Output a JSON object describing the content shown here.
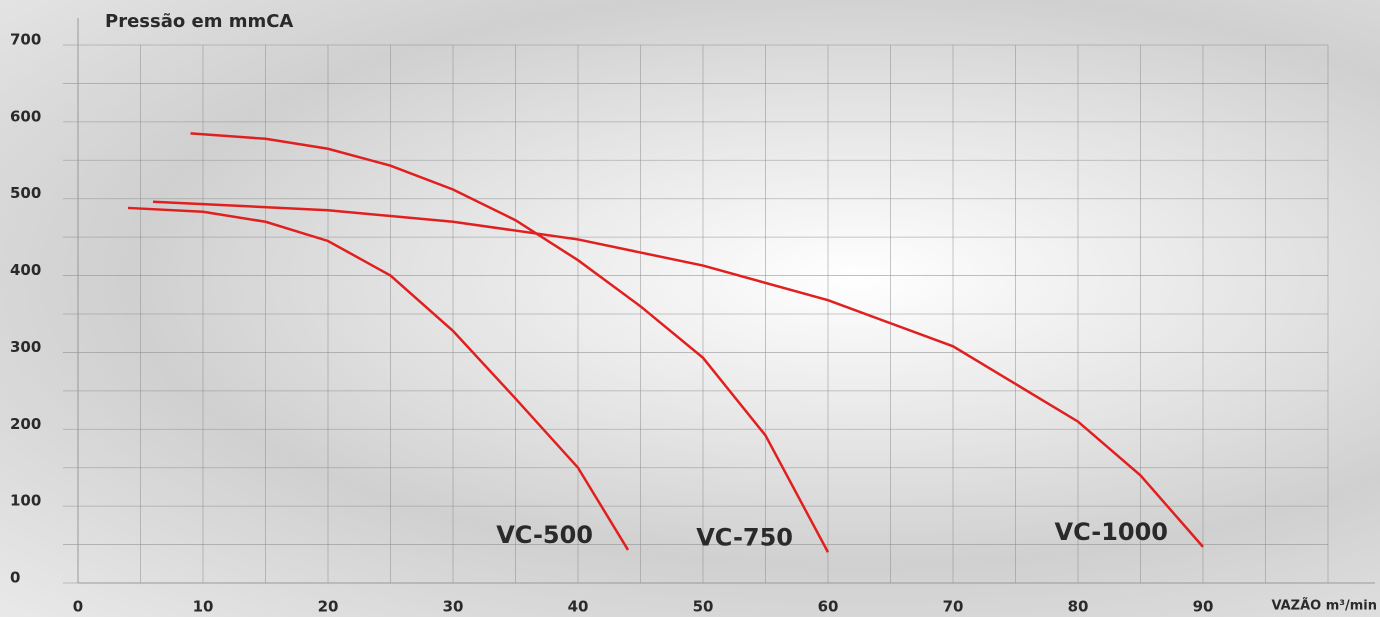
{
  "chart_data": {
    "type": "line",
    "title": "Pressão em mmCA",
    "x_label": "VAZÃO m³/min",
    "xlim": [
      0,
      100
    ],
    "ylim": [
      0,
      700
    ],
    "xticks": [
      0,
      10,
      20,
      30,
      40,
      50,
      60,
      70,
      80,
      90
    ],
    "yticks": [
      0,
      100,
      200,
      300,
      400,
      500,
      600,
      700
    ],
    "xminorticks": [
      5,
      15,
      25,
      35,
      45,
      55,
      65,
      75,
      85,
      95,
      100
    ],
    "yminorticks": [
      50,
      150,
      250,
      350,
      450,
      550,
      650
    ],
    "grid": true,
    "series": [
      {
        "name": "VC-500",
        "color": "#e11f1f",
        "x": [
          4,
          10,
          15,
          20,
          25,
          30,
          35,
          40,
          44
        ],
        "values": [
          488,
          483,
          470,
          445,
          400,
          328,
          240,
          150,
          43
        ]
      },
      {
        "name": "VC-750",
        "color": "#e11f1f",
        "x": [
          9,
          15,
          20,
          25,
          30,
          35,
          40,
          45,
          50,
          55,
          60
        ],
        "values": [
          585,
          578,
          565,
          543,
          512,
          472,
          420,
          360,
          293,
          192,
          40
        ]
      },
      {
        "name": "VC-1000",
        "color": "#e11f1f",
        "x": [
          6,
          10,
          20,
          30,
          40,
          50,
          60,
          70,
          80,
          85,
          90
        ],
        "values": [
          496,
          493,
          485,
          470,
          447,
          413,
          368,
          308,
          210,
          140,
          47
        ]
      }
    ]
  }
}
